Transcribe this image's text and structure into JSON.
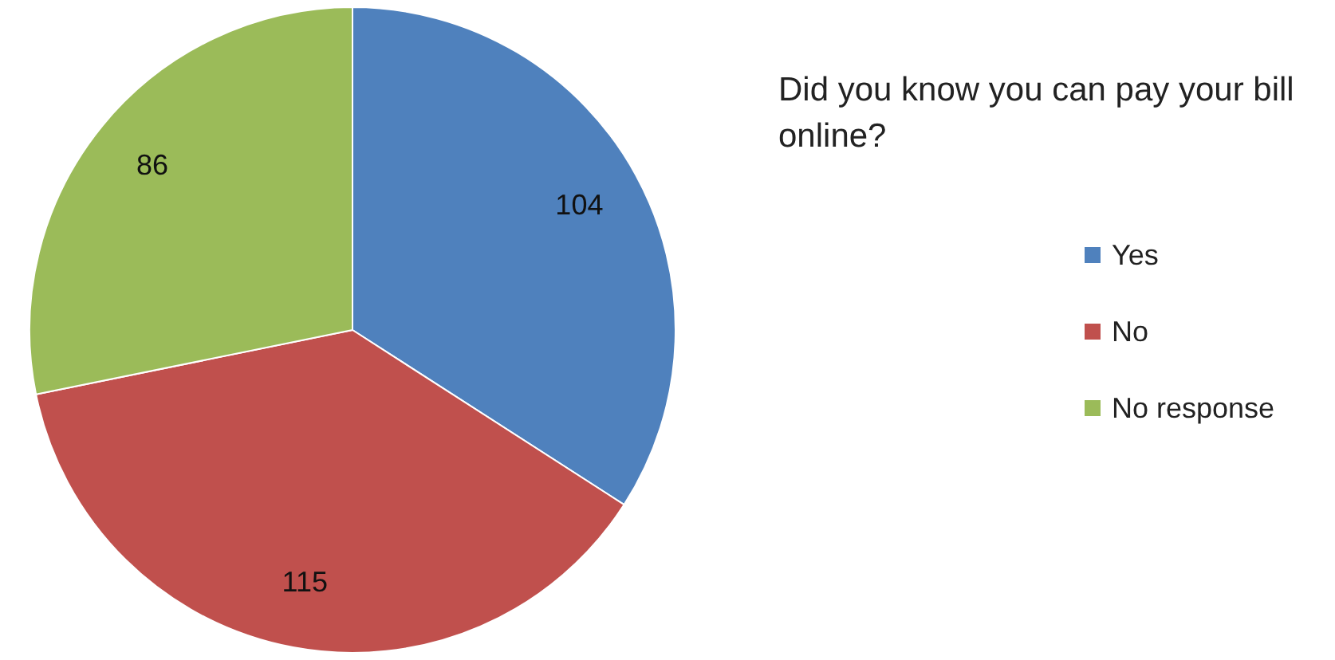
{
  "chart_data": {
    "type": "pie",
    "title": "Did you know you can pay your bill online?",
    "categories": [
      "Yes",
      "No",
      "No response"
    ],
    "values": [
      104,
      115,
      86
    ],
    "colors": [
      "#4f81bd",
      "#c0504d",
      "#9bbb59"
    ],
    "data_labels": true,
    "legend": "right"
  }
}
